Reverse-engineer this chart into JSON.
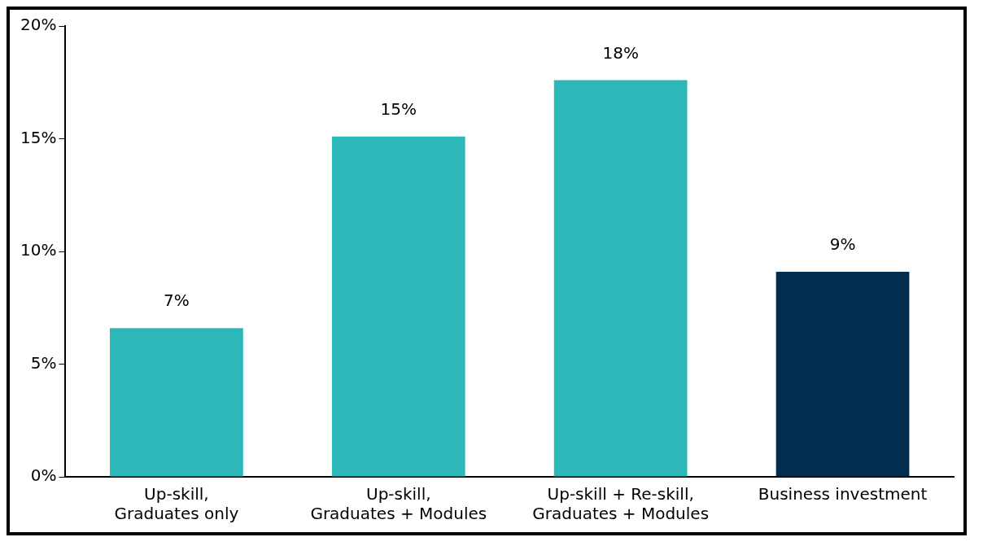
{
  "chart_data": {
    "type": "bar",
    "categories": [
      "Up-skill, Graduates only",
      "Up-skill, Graduates + Modules",
      "Up-skill + Re-skill, Graduates + Modules",
      "Business investment"
    ],
    "values": [
      6.6,
      15.1,
      17.6,
      9.1
    ],
    "colors": [
      "#2cb8b8",
      "#2cb8b8",
      "#2cb8b8",
      "#022d4e"
    ],
    "value_labels": [
      "7%",
      "15%",
      "18%",
      "9%"
    ],
    "ylim": [
      0,
      20
    ],
    "yticks": [
      {
        "value": 0,
        "label": "0%"
      },
      {
        "value": 5,
        "label": "5%"
      },
      {
        "value": 10,
        "label": "10%"
      },
      {
        "value": 15,
        "label": "15%"
      },
      {
        "value": 20,
        "label": "20%"
      }
    ],
    "grid": false,
    "legend": false
  }
}
